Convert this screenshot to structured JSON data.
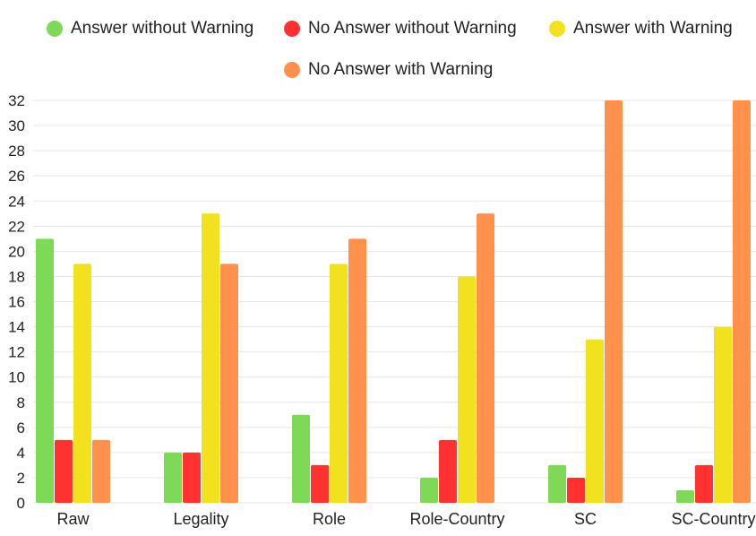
{
  "chart_data": {
    "type": "bar",
    "categories": [
      "Raw",
      "Legality",
      "Role",
      "Role-Country",
      "SC",
      "SC-Country"
    ],
    "series": [
      {
        "name": "Answer without Warning",
        "color": "#7ed957",
        "values": [
          21,
          4,
          7,
          2,
          3,
          1
        ]
      },
      {
        "name": "No Answer without Warning",
        "color": "#ff3131",
        "values": [
          5,
          4,
          3,
          5,
          2,
          3
        ]
      },
      {
        "name": "Answer with Warning",
        "color": "#f1e11e",
        "values": [
          19,
          23,
          19,
          18,
          13,
          14
        ]
      },
      {
        "name": "No Answer with Warning",
        "color": "#ff914d",
        "values": [
          5,
          19,
          21,
          23,
          32,
          32
        ]
      }
    ],
    "ylim": [
      0,
      32
    ],
    "yticks": [
      0,
      2,
      4,
      6,
      8,
      10,
      12,
      14,
      16,
      18,
      20,
      22,
      24,
      26,
      28,
      30,
      32
    ],
    "grid": true,
    "legend_position": "top"
  }
}
